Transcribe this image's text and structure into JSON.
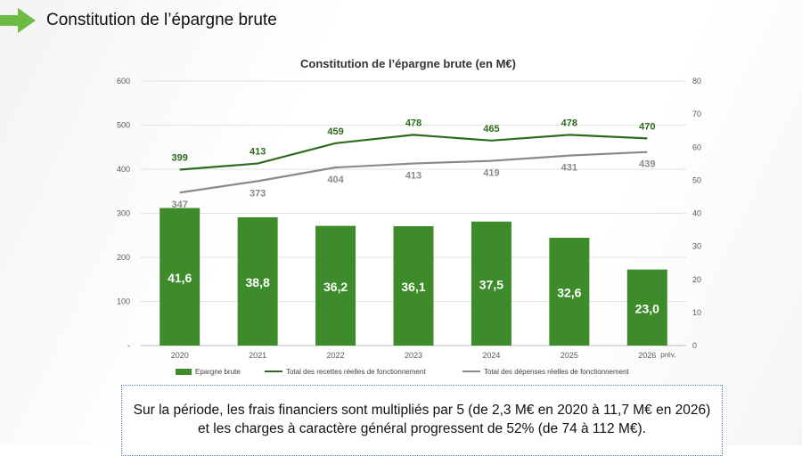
{
  "slide": {
    "title": "Constitution de l’épargne brute",
    "accent_color": "#6dba45"
  },
  "chart_data": {
    "type": "bar",
    "title": "Constitution de l’épargne brute (en M€)",
    "categories": [
      "2020",
      "2021",
      "2022",
      "2023",
      "2024",
      "2025",
      "2026"
    ],
    "category_suffix_last": "prév.",
    "left_axis": {
      "ylim": [
        0,
        600
      ],
      "ticks": [
        "-",
        "100",
        "200",
        "300",
        "400",
        "500",
        "600"
      ]
    },
    "right_axis": {
      "ylim": [
        0,
        80
      ],
      "ticks": [
        "0",
        "10",
        "20",
        "30",
        "40",
        "50",
        "60",
        "70",
        "80"
      ]
    },
    "grid": true,
    "legend_position": "bottom",
    "series": [
      {
        "name": "Epargne brute",
        "kind": "bar",
        "axis": "right",
        "color": "#3e8b2b",
        "values": [
          41.6,
          38.8,
          36.2,
          36.1,
          37.5,
          32.6,
          23.0
        ],
        "labels": [
          "41,6",
          "38,8",
          "36,2",
          "36,1",
          "37,5",
          "32,6",
          "23,0"
        ]
      },
      {
        "name": "Total des recettes réelles de fonctionnement",
        "kind": "line",
        "axis": "left",
        "color": "#2e6b1f",
        "values": [
          399,
          413,
          459,
          478,
          465,
          478,
          470
        ],
        "labels": [
          "399",
          "413",
          "459",
          "478",
          "465",
          "478",
          "470"
        ]
      },
      {
        "name": "Total des dépenses réelles de fonctionnement",
        "kind": "line",
        "axis": "left",
        "color": "#8a8a8a",
        "values": [
          347,
          373,
          404,
          413,
          419,
          431,
          439
        ],
        "labels": [
          "347",
          "373",
          "404",
          "413",
          "419",
          "431",
          "439"
        ]
      }
    ]
  },
  "note": {
    "line1": "Sur la période, les frais financiers sont multipliés par 5 (de 2,3 M€ en 2020 à 11,7 M€ en 2026)",
    "line2": "et les charges à caractère général progressent de 52% (de 74 à 112 M€)."
  }
}
